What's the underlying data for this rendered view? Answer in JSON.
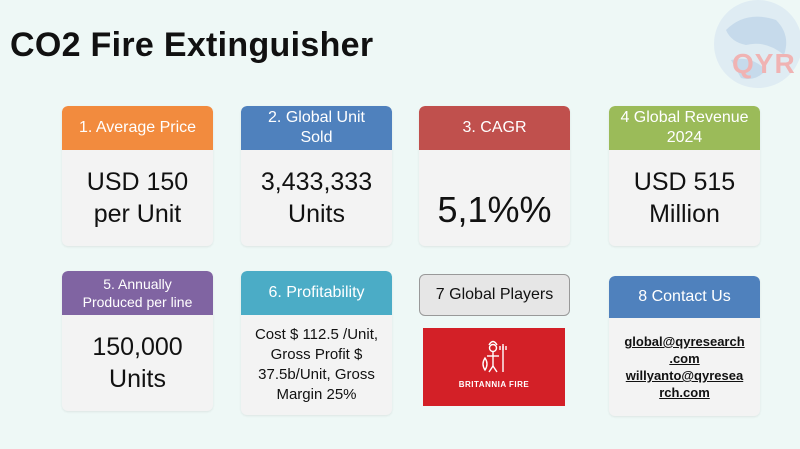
{
  "title": "CO2 Fire Extinguisher",
  "logo_text": "QYR",
  "cards": {
    "avg_price": {
      "header": "1. Average Price",
      "value_line1": "USD 150",
      "value_line2": "per Unit",
      "color": "#f28b3e"
    },
    "unit_sold": {
      "header_line1": "2. Global Unit",
      "header_line2": "Sold",
      "value_line1": "3,433,333",
      "value_line2": "Units",
      "color": "#4f81bd"
    },
    "cagr": {
      "header": "3. CAGR",
      "value": "5,1%%",
      "color": "#c0504d"
    },
    "revenue": {
      "header_line1": "4 Global Revenue",
      "header_line2": "2024",
      "value_line1": "USD 515",
      "value_line2": "Million",
      "color": "#9bbb59"
    },
    "produced": {
      "header_line1": "5. Annually",
      "header_line2": "Produced per line",
      "value_line1": "150,000",
      "value_line2": "Units",
      "color": "#8064a2"
    },
    "profitability": {
      "header": "6. Profitability",
      "line1": "Cost $ 112.5 /Unit,",
      "line2": "Gross Profit $",
      "line3": "37.5b/Unit, Gross",
      "line4": "Margin 25%",
      "color": "#4bacc6"
    },
    "players": {
      "header": "7 Global Players",
      "logo_text": "BRITANNIA FIRE",
      "logo_color": "#d32027"
    },
    "contact": {
      "header": "8 Contact Us",
      "email1_line1": "global@qyresearch",
      "email1_line2": ".com",
      "email2_line1": "willyanto@qyresea",
      "email2_line2": "rch.com",
      "color": "#4f81bd"
    }
  }
}
